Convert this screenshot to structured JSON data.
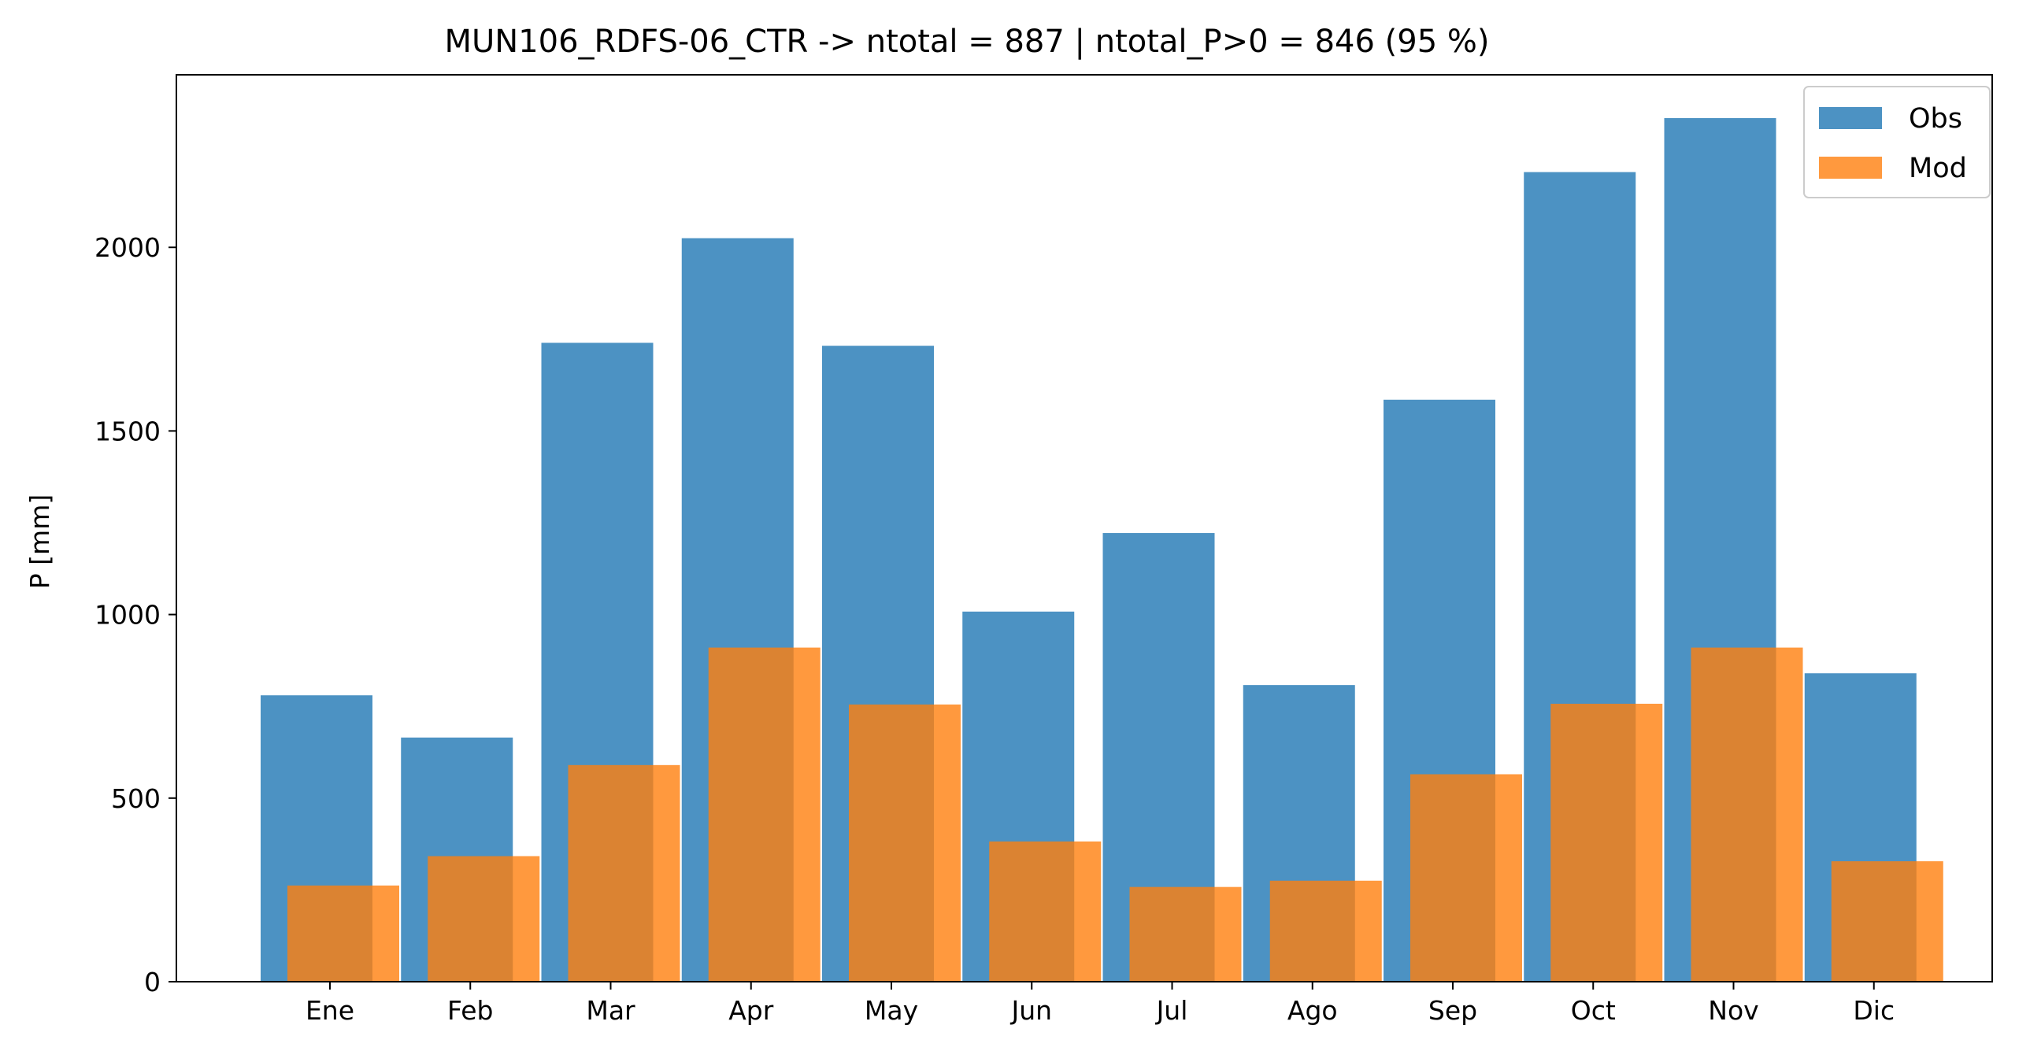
{
  "chart_data": {
    "type": "bar",
    "title": "MUN106_RDFS-06_CTR -> ntotal = 887 | ntotal_P>0 = 846 (95 %)",
    "xlabel": "",
    "ylabel": "P [mm]",
    "categories": [
      "Ene",
      "Feb",
      "Mar",
      "Apr",
      "May",
      "Jun",
      "Jul",
      "Ago",
      "Sep",
      "Oct",
      "Nov",
      "Dic"
    ],
    "series": [
      {
        "name": "Obs",
        "color": "#1f77b4",
        "opacity": 0.8,
        "values": [
          780,
          665,
          1740,
          2025,
          1732,
          1008,
          1222,
          808,
          1585,
          2205,
          2352,
          840
        ]
      },
      {
        "name": "Mod",
        "color": "#ff7f0e",
        "opacity": 0.8,
        "values": [
          262,
          342,
          590,
          910,
          755,
          382,
          258,
          275,
          565,
          757,
          910,
          328
        ]
      }
    ],
    "ylim": [
      0,
      2470
    ],
    "yticks": [
      0,
      500,
      1000,
      1500,
      2000
    ],
    "legend": "top-right",
    "grid": false
  }
}
